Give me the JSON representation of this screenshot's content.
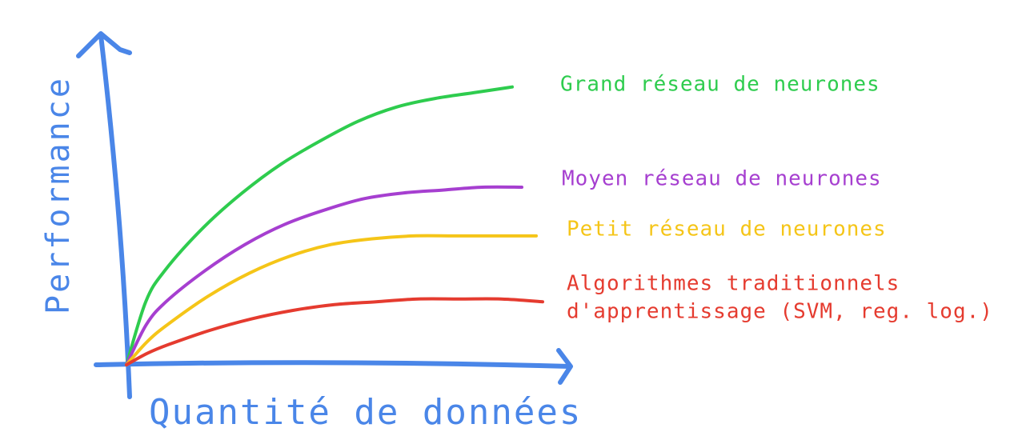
{
  "chart_data": {
    "type": "line",
    "xlabel": "Quantité de données",
    "ylabel": "Performance",
    "x": [
      0,
      0.05,
      0.1,
      0.2,
      0.3,
      0.4,
      0.5,
      0.6,
      0.7,
      0.8,
      0.9,
      1.0
    ],
    "series": [
      {
        "name": "Grand réseau de neurones",
        "color": "#2ecc4e",
        "values": [
          0.0,
          0.22,
          0.33,
          0.48,
          0.6,
          0.7,
          0.78,
          0.85,
          0.9,
          0.93,
          0.95,
          0.97
        ]
      },
      {
        "name": "Moyen réseau de neurones",
        "color": "#a63fd0",
        "values": [
          0.0,
          0.14,
          0.22,
          0.33,
          0.42,
          0.49,
          0.54,
          0.58,
          0.6,
          0.61,
          0.62,
          0.62
        ]
      },
      {
        "name": "Petit réseau de neurones",
        "color": "#f5c518",
        "values": [
          0.0,
          0.08,
          0.14,
          0.24,
          0.32,
          0.38,
          0.42,
          0.44,
          0.45,
          0.45,
          0.45,
          0.45
        ]
      },
      {
        "name": "Algorithmes traditionnels\nd'apprentissage (SVM, reg. log.)",
        "name_lines": [
          "Algorithmes traditionnels",
          "d'apprentissage (SVM, reg. log.)"
        ],
        "color": "#e53b2f",
        "values": [
          0.0,
          0.04,
          0.07,
          0.12,
          0.16,
          0.19,
          0.21,
          0.22,
          0.23,
          0.23,
          0.23,
          0.22
        ]
      }
    ],
    "axis_color": "#4a86e8",
    "grid": false,
    "legend": "right"
  }
}
